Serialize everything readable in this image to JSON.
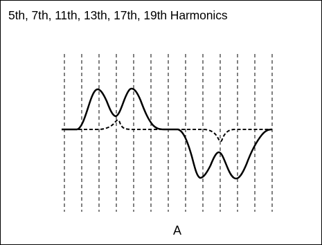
{
  "figure": {
    "title": "5th, 7th, 11th, 13th, 17th, 19th Harmonics",
    "caption": "A"
  },
  "colors": {
    "line": "#000000",
    "background": "#ffffff",
    "border": "#000000"
  }
}
